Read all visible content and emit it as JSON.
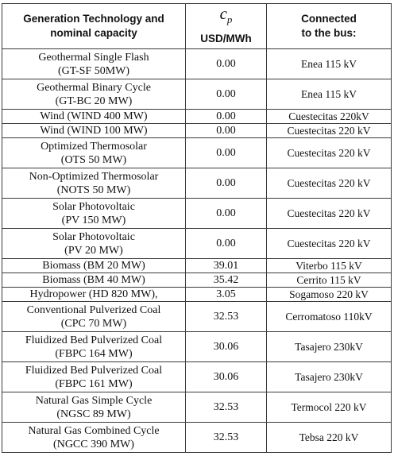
{
  "header": {
    "technology": [
      "Generation Technology and",
      "nominal capacity"
    ],
    "cost_symbol": "c",
    "cost_subscript": "p",
    "cost_unit": "USD/MWh",
    "bus": [
      "Connected",
      "to the bus:"
    ]
  },
  "rows": [
    {
      "name": [
        "Geothermal Single Flash",
        "(GT-SF 50MW)"
      ],
      "cost": "0.00",
      "bus": "Enea 115 kV"
    },
    {
      "name": [
        "Geothermal Binary Cycle",
        "(GT-BC 20 MW)"
      ],
      "cost": "0.00",
      "bus": "Enea 115 kV"
    },
    {
      "name": [
        "Wind (WIND 400 MW)"
      ],
      "cost": "0.00",
      "bus": "Cuestecitas 220kV"
    },
    {
      "name": [
        "Wind (WIND 100 MW)"
      ],
      "cost": "0.00",
      "bus": "Cuestecitas 220 kV"
    },
    {
      "name": [
        "Optimized Thermosolar",
        "(OTS 50 MW)"
      ],
      "cost": "0.00",
      "bus": "Cuestecitas 220 kV"
    },
    {
      "name": [
        "Non-Optimized Thermosolar",
        "(NOTS 50 MW)"
      ],
      "cost": "0.00",
      "bus": "Cuestecitas 220 kV"
    },
    {
      "name": [
        "Solar Photovoltaic",
        "(PV 150 MW)"
      ],
      "cost": "0.00",
      "bus": "Cuestecitas 220 kV"
    },
    {
      "name": [
        "Solar Photovoltaic",
        "(PV 20 MW)"
      ],
      "cost": "0.00",
      "bus": "Cuestecitas 220 kV"
    },
    {
      "name": [
        "Biomass (BM 20 MW)"
      ],
      "cost": "39.01",
      "bus": "Viterbo 115 kV"
    },
    {
      "name": [
        "Biomass (BM 40 MW)"
      ],
      "cost": "35.42",
      "bus": "Cerrito  115 kV"
    },
    {
      "name": [
        "Hydropower (HD 820 MW),"
      ],
      "cost": "3.05",
      "bus": "Sogamoso 220 kV"
    },
    {
      "name": [
        "Conventional Pulverized Coal",
        "(CPC 70 MW)"
      ],
      "cost": "32.53",
      "bus": "Cerromatoso 110kV"
    },
    {
      "name": [
        "Fluidized Bed Pulverized Coal",
        "(FBPC 164 MW)"
      ],
      "cost": "30.06",
      "bus": "Tasajero 230kV"
    },
    {
      "name": [
        "Fluidized Bed Pulverized Coal",
        "(FBPC 161 MW)"
      ],
      "cost": "30.06",
      "bus": "Tasajero 230kV"
    },
    {
      "name": [
        "Natural Gas Simple Cycle",
        "(NGSC 89 MW)"
      ],
      "cost": "32.53",
      "bus": "Termocol 220 kV"
    },
    {
      "name": [
        "Natural Gas Combined Cycle",
        "(NGCC 390 MW)"
      ],
      "cost": "32.53",
      "bus": "Tebsa 220 kV"
    }
  ]
}
